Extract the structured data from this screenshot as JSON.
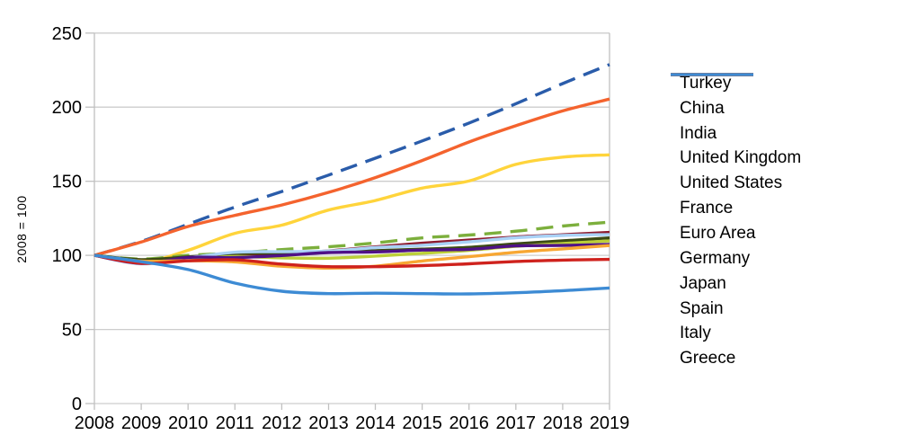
{
  "figure": {
    "y_axis_title": "2008 = 100"
  },
  "colors": {
    "background": "#ffffff",
    "gridline": "#cdcdcd",
    "axis_line": "#c0c0c0",
    "text": "#000000"
  },
  "chart_data": {
    "type": "line",
    "title": "",
    "xlabel": "",
    "ylabel": "2008 = 100",
    "x": [
      2008,
      2009,
      2010,
      2011,
      2012,
      2013,
      2014,
      2015,
      2016,
      2017,
      2018,
      2019
    ],
    "ylim": [
      0,
      250
    ],
    "yticks": [
      0,
      50,
      100,
      150,
      200,
      250
    ],
    "grid": "horizontal",
    "smooth_lines": true,
    "legend_position": "right",
    "series": [
      {
        "name": "Turkey",
        "color": "#FFD43B",
        "line_style": "solid",
        "values": [
          100,
          95.3,
          103.4,
          114.9,
          120.4,
          130.6,
          137.0,
          145.4,
          150.2,
          161.4,
          166.3,
          167.8
        ]
      },
      {
        "name": "China",
        "color": "#2A5CAA",
        "line_style": "dashed",
        "values": [
          100,
          109.4,
          121.0,
          132.6,
          143.1,
          154.2,
          165.6,
          177.2,
          189.3,
          202.3,
          215.9,
          228.8
        ]
      },
      {
        "name": "India",
        "color": "#F4632E",
        "line_style": "solid",
        "values": [
          100,
          109.0,
          119.5,
          127.0,
          134.0,
          142.5,
          152.5,
          164.0,
          176.5,
          187.5,
          197.5,
          205.5
        ]
      },
      {
        "name": "United Kingdom",
        "color": "#8E1B2E",
        "line_style": "solid",
        "values": [
          100,
          95.9,
          97.9,
          99.4,
          100.9,
          103.0,
          105.7,
          108.2,
          110.3,
          112.4,
          113.9,
          115.5
        ]
      },
      {
        "name": "United States",
        "color": "#7CAF3C",
        "line_style": "dashed",
        "values": [
          100,
          97.5,
          100.0,
          101.6,
          103.9,
          105.8,
          108.4,
          111.8,
          113.7,
          116.3,
          119.8,
          122.4
        ]
      },
      {
        "name": "France",
        "color": "#3B4A14",
        "line_style": "solid",
        "values": [
          100,
          97.1,
          99.0,
          101.2,
          101.5,
          102.1,
          103.1,
          104.2,
          105.4,
          107.8,
          109.8,
          111.8
        ]
      },
      {
        "name": "Euro Area",
        "color": "#BCD039",
        "line_style": "solid",
        "values": [
          100,
          95.5,
          97.5,
          99.2,
          98.3,
          98.1,
          99.5,
          101.4,
          103.4,
          106.1,
          108.0,
          109.7
        ]
      },
      {
        "name": "Germany",
        "color": "#A9D2F6",
        "line_style": "solid",
        "values": [
          100,
          94.3,
          98.3,
          102.1,
          102.5,
          102.9,
          105.2,
          106.8,
          109.1,
          111.9,
          113.4,
          114.1
        ]
      },
      {
        "name": "Japan",
        "color": "#4F1187",
        "line_style": "solid",
        "values": [
          100,
          94.6,
          98.6,
          98.5,
          99.9,
          101.9,
          102.3,
          103.6,
          104.1,
          106.4,
          106.7,
          107.4
        ]
      },
      {
        "name": "Spain",
        "color": "#F7A733",
        "line_style": "solid",
        "values": [
          100,
          96.2,
          96.4,
          95.6,
          92.7,
          91.4,
          92.7,
          96.2,
          99.1,
          102.1,
          104.4,
          106.6
        ]
      },
      {
        "name": "Italy",
        "color": "#CF221D",
        "line_style": "solid",
        "values": [
          100,
          94.7,
          96.3,
          97.0,
          94.1,
          92.4,
          92.4,
          93.1,
          94.3,
          95.9,
          96.8,
          97.3
        ]
      },
      {
        "name": "Greece",
        "color": "#3D8BD4",
        "line_style": "solid",
        "values": [
          100,
          95.7,
          90.4,
          81.3,
          75.8,
          74.2,
          74.5,
          74.2,
          74.0,
          74.8,
          76.2,
          78.0
        ]
      }
    ]
  }
}
